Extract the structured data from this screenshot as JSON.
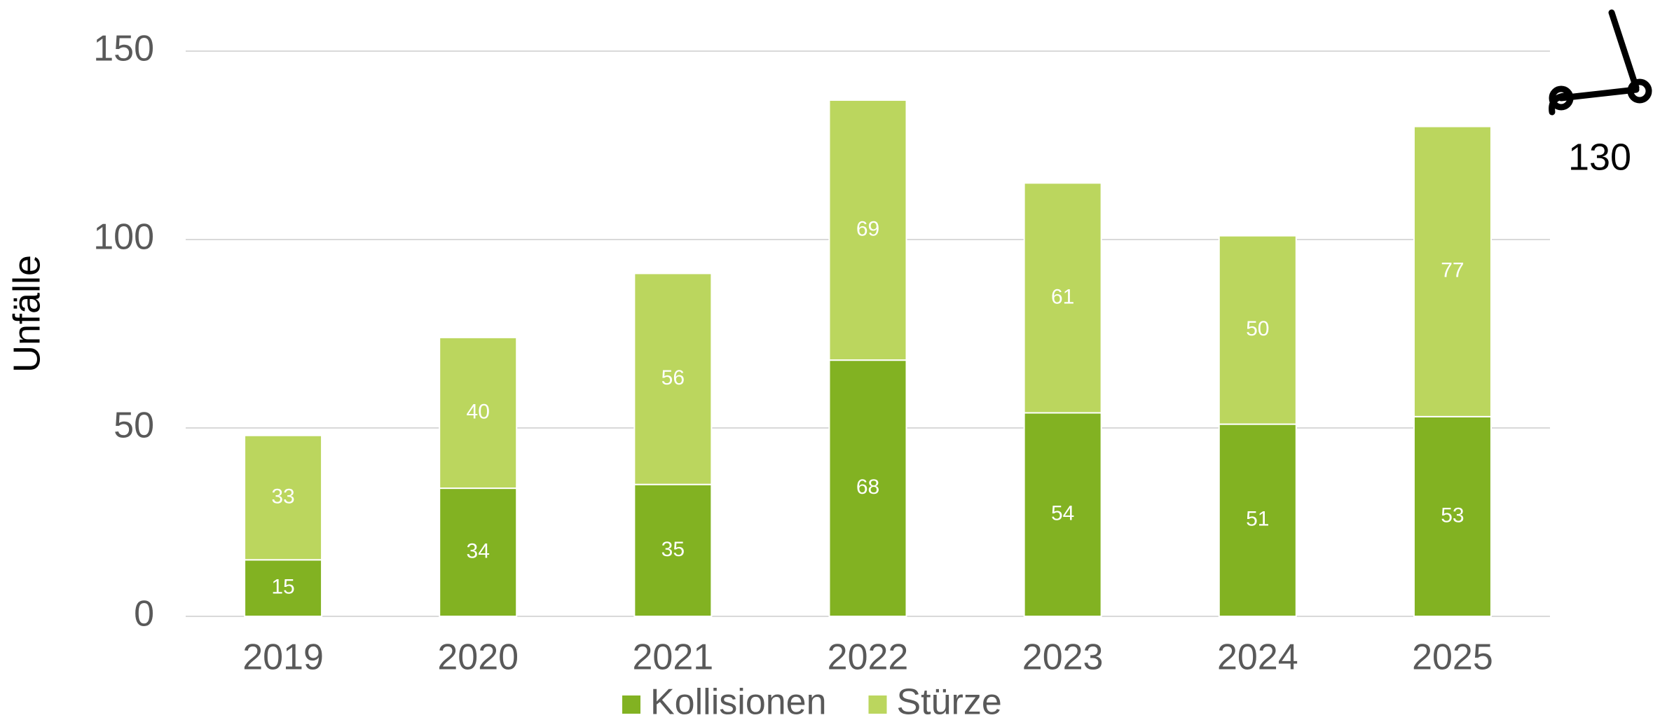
{
  "chart_data": {
    "type": "stacked_bar",
    "categories": [
      "2019",
      "2020",
      "2021",
      "2022",
      "2023",
      "2024",
      "2025"
    ],
    "series": [
      {
        "name": "Kollisionen",
        "color": "#82b222",
        "values": [
          15,
          34,
          35,
          68,
          54,
          51,
          53
        ]
      },
      {
        "name": "Stürze",
        "color": "#bbd65e",
        "values": [
          33,
          40,
          56,
          69,
          61,
          50,
          77
        ]
      }
    ],
    "y_label": "Unfälle",
    "annotation": "130",
    "ylim": [
      0,
      150
    ],
    "yticks": [
      0,
      50,
      100,
      150
    ],
    "grid": true,
    "legend": "bottom"
  }
}
